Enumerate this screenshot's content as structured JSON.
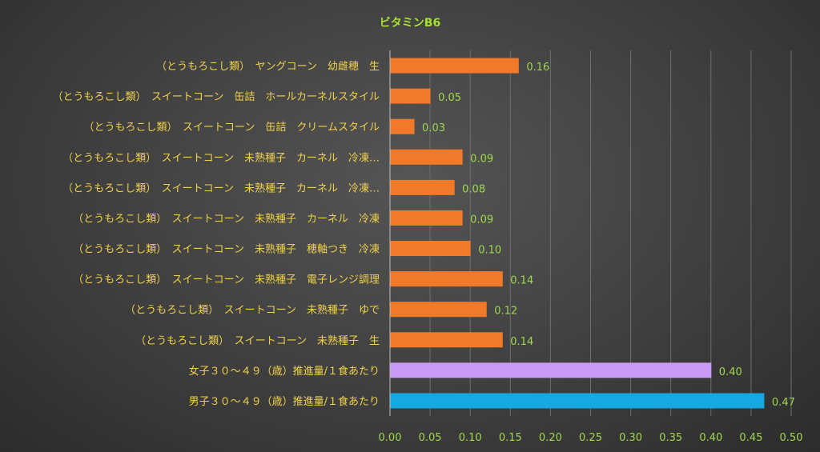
{
  "chart_data": {
    "type": "bar",
    "orientation": "horizontal",
    "title": "ビタミンB6",
    "xlabel": "",
    "ylabel": "",
    "xlim": [
      0,
      0.5
    ],
    "x_ticks": [
      "0.00",
      "0.05",
      "0.10",
      "0.15",
      "0.20",
      "0.25",
      "0.30",
      "0.35",
      "0.40",
      "0.45",
      "0.50"
    ],
    "grid": "vertical",
    "legend": "none",
    "categories": [
      "（とうもろこし類）　ヤングコーン　幼雌穂　生",
      "（とうもろこし類）　スイートコーン　缶詰　ホールカーネルスタイル",
      "（とうもろこし類）　スイートコーン　缶詰　クリームスタイル",
      "（とうもろこし類）　スイートコーン　未熟種子　カーネル　冷凍…",
      "（とうもろこし類）　スイートコーン　未熟種子　カーネル　冷凍…",
      "（とうもろこし類）　スイートコーン　未熟種子　カーネル　冷凍",
      "（とうもろこし類）　スイートコーン　未熟種子　穂軸つき　冷凍",
      "（とうもろこし類）　スイートコーン　未熟種子　電子レンジ調理",
      "（とうもろこし類）　スイートコーン　未熟種子　ゆで",
      "（とうもろこし類）　スイートコーン　未熟種子　生",
      "女子３０～４９（歳）推進量/１食あたり",
      "男子３０～４９（歳）推進量/１食あたり"
    ],
    "values": [
      0.16,
      0.05,
      0.03,
      0.09,
      0.08,
      0.09,
      0.1,
      0.14,
      0.12,
      0.14,
      0.4,
      0.466
    ],
    "data_labels": [
      "0.16",
      "0.05",
      "0.03",
      "0.09",
      "0.08",
      "0.09",
      "0.10",
      "0.14",
      "0.12",
      "0.14",
      "0.40",
      "0.47"
    ],
    "bar_colors": [
      "#f07a2a",
      "#f07a2a",
      "#f07a2a",
      "#f07a2a",
      "#f07a2a",
      "#f07a2a",
      "#f07a2a",
      "#f07a2a",
      "#f07a2a",
      "#f07a2a",
      "#c99bf5",
      "#16a8e0"
    ]
  },
  "colors": {
    "title": "#a6e22e",
    "category_text": "#f0d24a",
    "tick_text": "#9fd84a",
    "data_label_text": "#9fd84a",
    "gridline": "#6e6e6e",
    "axis_line": "#bdbdbd"
  }
}
